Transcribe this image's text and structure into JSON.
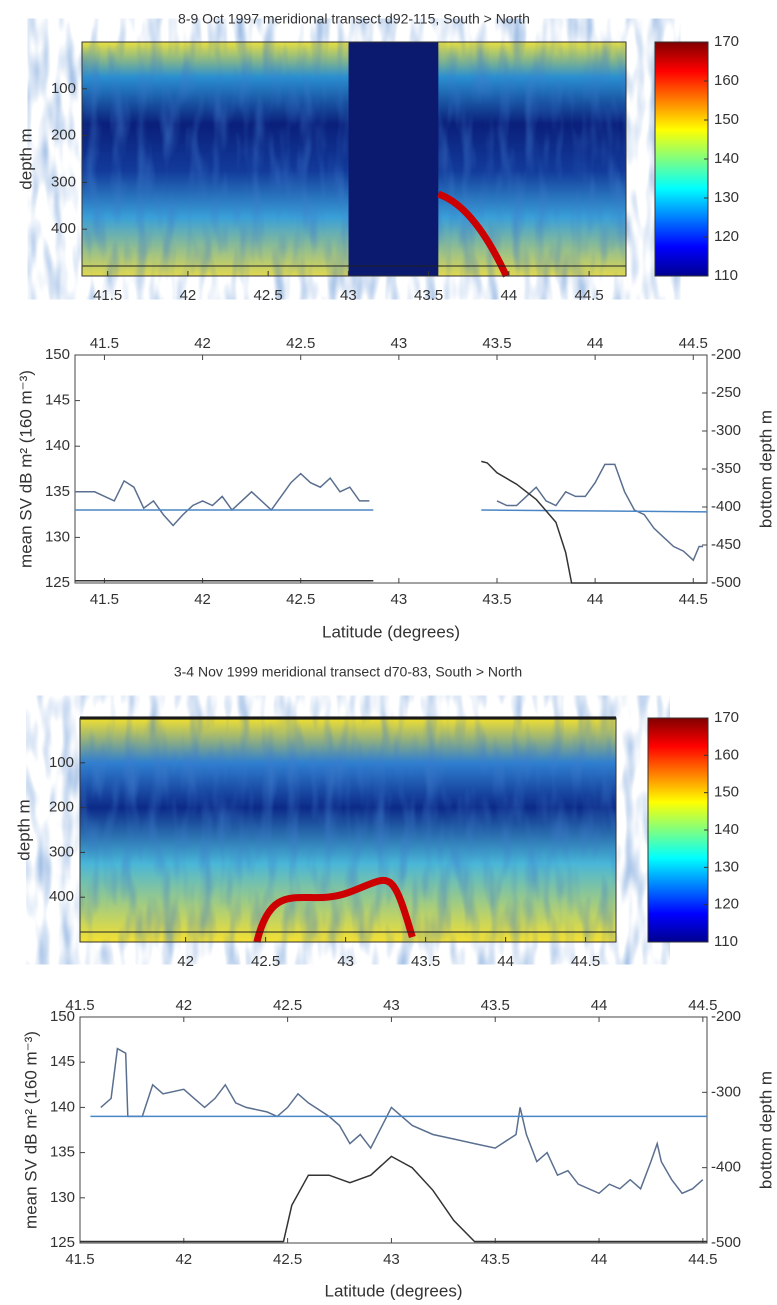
{
  "chart_data": [
    {
      "type": "heatmap",
      "title": "8-9 Oct 1997 meridional transect d92-115, South > North",
      "y_label": "depth m",
      "xlim": [
        41.34,
        44.73
      ],
      "xticks": [
        41.5,
        42,
        42.5,
        43,
        43.5,
        44,
        44.5
      ],
      "ylim": [
        500,
        0
      ],
      "yticks": [
        100,
        200,
        300,
        400
      ],
      "clim": [
        110,
        170
      ],
      "cticks": [
        110,
        120,
        130,
        140,
        150,
        160,
        170
      ],
      "colormap": "jet"
    },
    {
      "type": "line",
      "x_label": "Latitude (degrees)",
      "y_label": "mean SV dB m² (160 m⁻³)",
      "y2_label": "bottom depth m",
      "xlim": [
        41.35,
        44.57
      ],
      "xticks": [
        41.5,
        42,
        42.5,
        43,
        43.5,
        44,
        44.5
      ],
      "ylim": [
        125,
        150
      ],
      "yticks": [
        125,
        130,
        135,
        140,
        145,
        150
      ],
      "y2lim": [
        -500,
        -200
      ],
      "y2ticks": [
        -200,
        -250,
        -300,
        -350,
        -400,
        -450,
        -500
      ],
      "series": [
        {
          "color": "#5a6f8f",
          "x": [
            41.35,
            41.45,
            41.55,
            41.6,
            41.65,
            41.7,
            41.75,
            41.8,
            41.85,
            41.9,
            41.95,
            42.0,
            42.05,
            42.1,
            42.15,
            42.2,
            42.25,
            42.3,
            42.35,
            42.4,
            42.45,
            42.5,
            42.55,
            42.6,
            42.65,
            42.7,
            42.75,
            42.8,
            42.85,
            43.2,
            43.5,
            43.55,
            43.6,
            43.65,
            43.7,
            43.75,
            43.8,
            43.85,
            43.9,
            43.95,
            44.0,
            44.05,
            44.1,
            44.15,
            44.2,
            44.25,
            44.3,
            44.35,
            44.4,
            44.45,
            44.5,
            44.53,
            44.55
          ],
          "values": [
            135,
            135,
            134,
            136.2,
            135.5,
            133.2,
            134,
            132.5,
            131.3,
            132.5,
            133.5,
            134,
            133.5,
            134.5,
            133,
            134,
            135,
            134,
            133,
            134.5,
            136,
            137,
            136,
            135.5,
            136.5,
            135,
            135.5,
            134,
            134,
            null,
            134,
            133.5,
            133.5,
            134.5,
            135.5,
            134,
            133.5,
            135,
            134.5,
            134.5,
            136,
            138,
            138,
            135,
            133,
            132.5,
            131,
            130,
            129,
            128.5,
            127.5,
            129,
            129
          ]
        },
        {
          "color": "#4a86c5",
          "x": [
            41.35,
            42.87,
            43.2,
            43.42,
            44.57
          ],
          "values": [
            133,
            133,
            null,
            133,
            132.8
          ]
        },
        {
          "color": "#333333",
          "axis": "y2",
          "x": [
            41.35,
            42.87,
            43.2,
            43.42,
            43.45,
            43.5,
            43.6,
            43.7,
            43.8,
            43.85,
            43.88,
            44.57
          ],
          "values": [
            -497,
            -497,
            null,
            -340,
            -342,
            -355,
            -370,
            -390,
            -420,
            -460,
            -500,
            -500
          ]
        }
      ]
    },
    {
      "type": "heatmap",
      "title": "3-4 Nov 1999 meridional transect d70-83, South > North",
      "y_label": "depth m",
      "xlim": [
        41.34,
        44.69
      ],
      "xticks": [
        42,
        42.5,
        43,
        43.5,
        44,
        44.5
      ],
      "ylim": [
        500,
        0
      ],
      "yticks": [
        100,
        200,
        300,
        400
      ],
      "clim": [
        110,
        170
      ],
      "cticks": [
        110,
        120,
        130,
        140,
        150,
        160,
        170
      ],
      "colormap": "jet"
    },
    {
      "type": "line",
      "x_label": "Latitude (degrees)",
      "y_label": "mean SV dB m² (160 m⁻³)",
      "y2_label": "bottom depth m",
      "xlim": [
        41.5,
        44.52
      ],
      "xticks": [
        41.5,
        42,
        42.5,
        43,
        43.5,
        44,
        44.5
      ],
      "ylim": [
        125,
        150
      ],
      "yticks": [
        125,
        130,
        135,
        140,
        145,
        150
      ],
      "y2lim": [
        -500,
        -200
      ],
      "y2ticks": [
        -200,
        -300,
        -400,
        -500
      ],
      "series": [
        {
          "color": "#5a6f8f",
          "x": [
            41.6,
            41.65,
            41.68,
            41.72,
            41.73,
            41.8,
            41.85,
            41.9,
            42.0,
            42.05,
            42.1,
            42.15,
            42.2,
            42.25,
            42.3,
            42.4,
            42.45,
            42.5,
            42.55,
            42.6,
            42.7,
            42.75,
            42.8,
            42.85,
            42.9,
            43.0,
            43.05,
            43.1,
            43.2,
            43.3,
            43.4,
            43.5,
            43.6,
            43.62,
            43.65,
            43.7,
            43.75,
            43.8,
            43.85,
            43.9,
            44.0,
            44.05,
            44.1,
            44.15,
            44.2,
            44.25,
            44.28,
            44.3,
            44.35,
            44.4,
            44.45,
            44.5
          ],
          "values": [
            140,
            141,
            146.5,
            146,
            139,
            139,
            142.5,
            141.5,
            142,
            141,
            140,
            141,
            142.5,
            140.5,
            140,
            139.5,
            139,
            140,
            141.5,
            140.5,
            139,
            138,
            136,
            137,
            135.5,
            140,
            139,
            138,
            137,
            136.5,
            136,
            135.5,
            137,
            140,
            137,
            134,
            135,
            132.5,
            133,
            131.5,
            130.5,
            131.5,
            131,
            132,
            131,
            134,
            136,
            134,
            132,
            130.5,
            131,
            132
          ]
        },
        {
          "color": "#4a86c5",
          "x": [
            41.55,
            44.52
          ],
          "values": [
            139,
            139
          ]
        },
        {
          "color": "#333333",
          "axis": "y2",
          "x": [
            41.5,
            42.48,
            42.52,
            42.6,
            42.7,
            42.8,
            42.9,
            43.0,
            43.1,
            43.2,
            43.3,
            43.4,
            44.52
          ],
          "values": [
            -498,
            -498,
            -450,
            -410,
            -410,
            -420,
            -410,
            -385,
            -400,
            -430,
            -470,
            -498,
            -498
          ]
        }
      ]
    }
  ]
}
